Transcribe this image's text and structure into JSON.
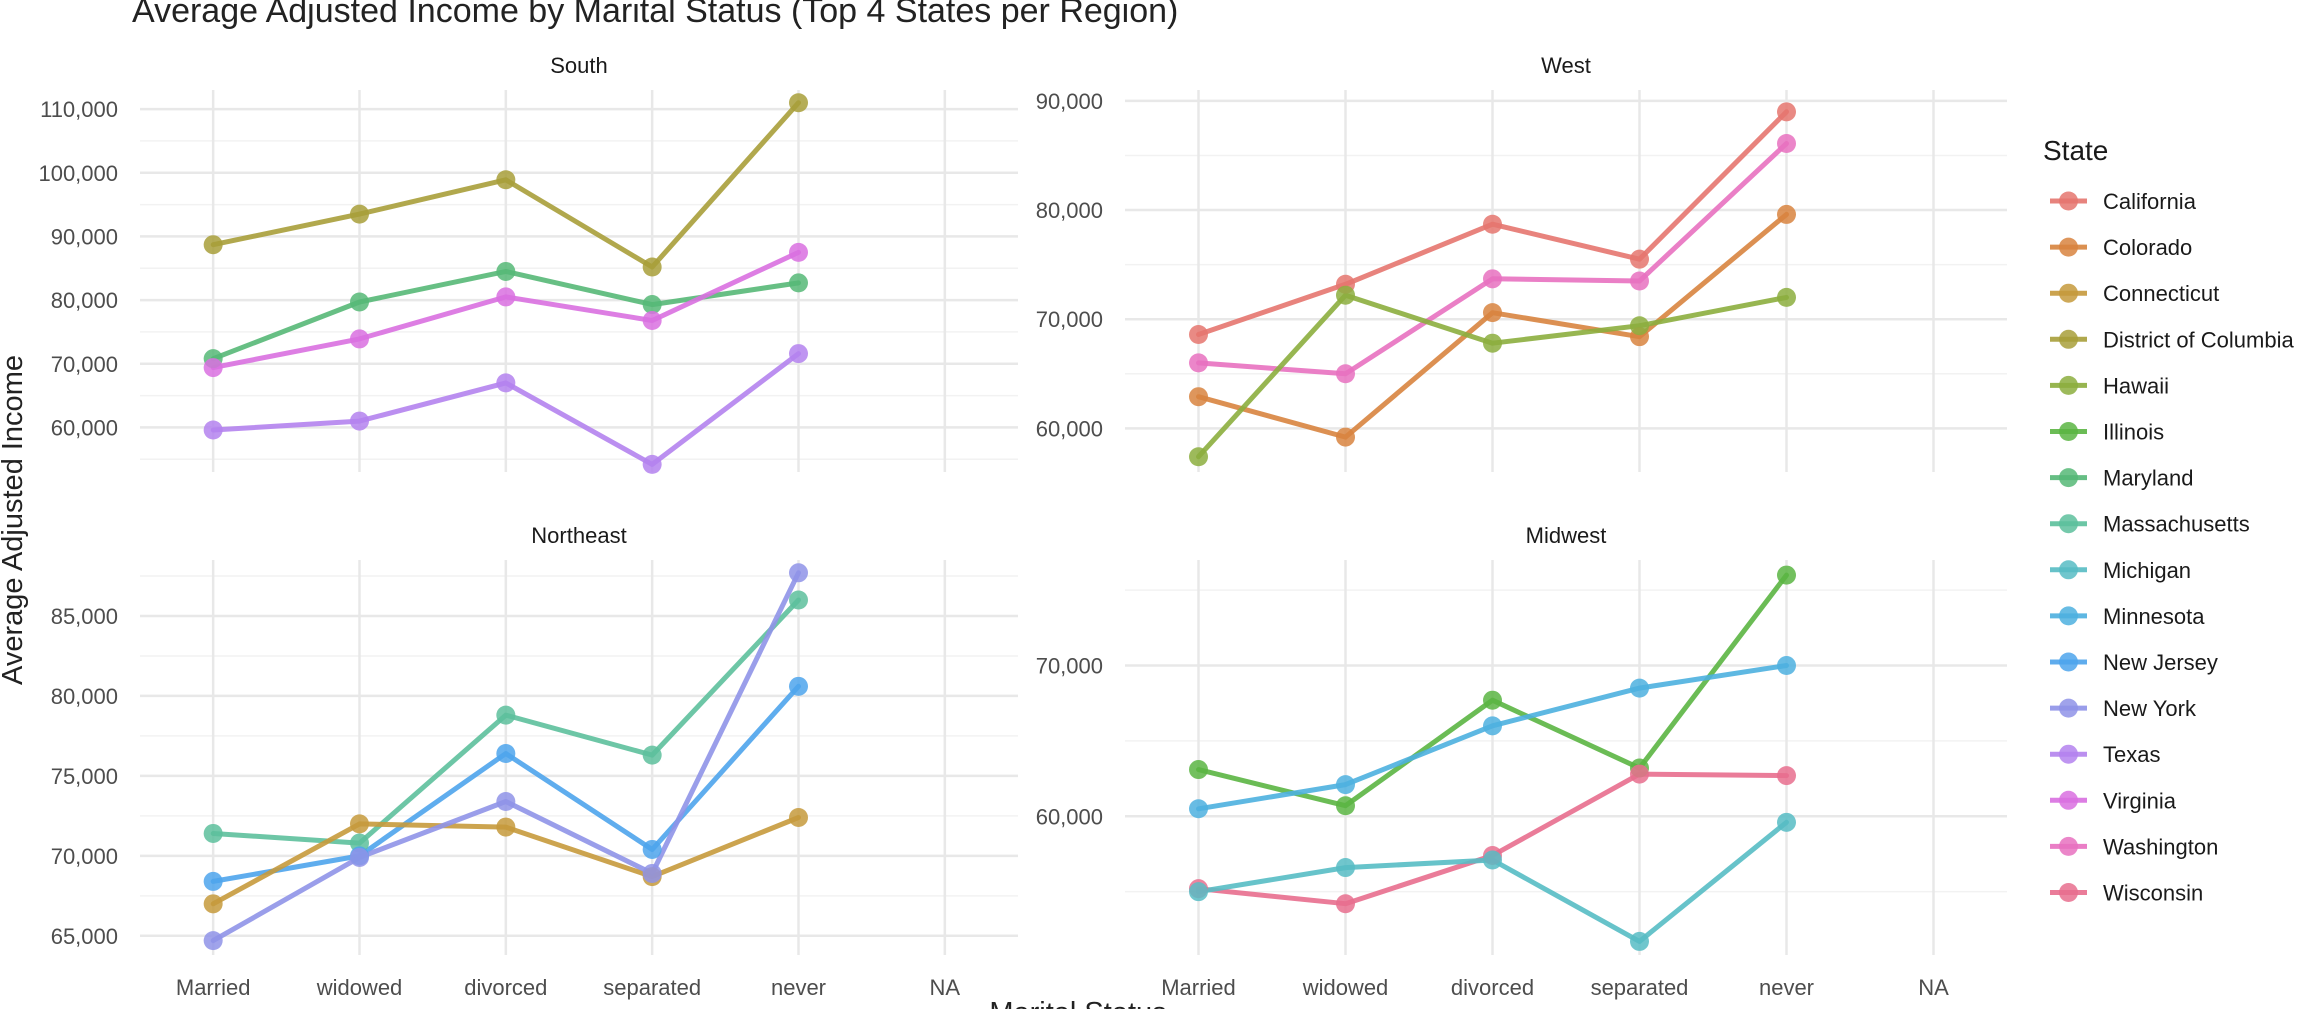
{
  "chart_data": {
    "type": "line",
    "title": "Average Adjusted Income by Marital Status (Top 4 States per Region)",
    "xlabel": "Marital Status",
    "ylabel": "Average Adjusted Income",
    "categories": [
      "Married",
      "widowed",
      "divorced",
      "separated",
      "never",
      "NA"
    ],
    "grid": true,
    "legend": {
      "title": "State",
      "position": "right",
      "entries": [
        {
          "name": "California",
          "color": "#E5766F"
        },
        {
          "name": "Colorado",
          "color": "#D8843F"
        },
        {
          "name": "Connecticut",
          "color": "#C69A3C"
        },
        {
          "name": "District of Columbia",
          "color": "#A89F3A"
        },
        {
          "name": "Hawaii",
          "color": "#8CAE3E"
        },
        {
          "name": "Illinois",
          "color": "#5BB543"
        },
        {
          "name": "Maryland",
          "color": "#56B877"
        },
        {
          "name": "Massachusetts",
          "color": "#5DC09C"
        },
        {
          "name": "Michigan",
          "color": "#57BCC4"
        },
        {
          "name": "Minnesota",
          "color": "#4DB0DF"
        },
        {
          "name": "New Jersey",
          "color": "#4EA4EC"
        },
        {
          "name": "New York",
          "color": "#8F93E8"
        },
        {
          "name": "Texas",
          "color": "#B483EE"
        },
        {
          "name": "Virginia",
          "color": "#D970E0"
        },
        {
          "name": "Washington",
          "color": "#E871C0"
        },
        {
          "name": "Wisconsin",
          "color": "#E86E8E"
        }
      ]
    },
    "panels": [
      {
        "region": "South",
        "ylim": [
          53000,
          113000
        ],
        "yticks": [
          60000,
          70000,
          80000,
          90000,
          100000,
          110000
        ],
        "ytick_labels": [
          "60,000",
          "70,000",
          "80,000",
          "90,000",
          "100,000",
          "110,000"
        ],
        "series": [
          {
            "name": "District of Columbia",
            "values": [
              88700,
              93500,
              98900,
              85200,
              111000
            ]
          },
          {
            "name": "Maryland",
            "values": [
              70800,
              79700,
              84500,
              79300,
              82700
            ]
          },
          {
            "name": "Virginia",
            "values": [
              69400,
              73900,
              80500,
              76800,
              87500
            ]
          },
          {
            "name": "Texas",
            "values": [
              59600,
              61000,
              67000,
              54200,
              71600
            ]
          }
        ]
      },
      {
        "region": "West",
        "ylim": [
          56000,
          91000
        ],
        "yticks": [
          60000,
          70000,
          80000,
          90000
        ],
        "ytick_labels": [
          "60,000",
          "70,000",
          "80,000",
          "90,000"
        ],
        "series": [
          {
            "name": "California",
            "values": [
              68600,
              73200,
              78700,
              75500,
              89000
            ]
          },
          {
            "name": "Washington",
            "values": [
              66000,
              65000,
              73700,
              73500,
              86100
            ]
          },
          {
            "name": "Colorado",
            "values": [
              62900,
              59200,
              70600,
              68400,
              79600
            ]
          },
          {
            "name": "Hawaii",
            "values": [
              57400,
              72200,
              67800,
              69400,
              72000
            ]
          }
        ]
      },
      {
        "region": "Northeast",
        "ylim": [
          63800,
          88500
        ],
        "yticks": [
          65000,
          70000,
          75000,
          80000,
          85000
        ],
        "ytick_labels": [
          "65,000",
          "70,000",
          "75,000",
          "80,000",
          "85,000"
        ],
        "series": [
          {
            "name": "Massachusetts",
            "values": [
              71400,
              70800,
              78800,
              76300,
              86000
            ]
          },
          {
            "name": "New Jersey",
            "values": [
              68400,
              70000,
              76400,
              70400,
              80600
            ]
          },
          {
            "name": "Connecticut",
            "values": [
              67000,
              72000,
              71800,
              68700,
              72400
            ]
          },
          {
            "name": "New York",
            "values": [
              64700,
              69900,
              73400,
              68900,
              87700
            ]
          }
        ]
      },
      {
        "region": "Midwest",
        "ylim": [
          50800,
          77000
        ],
        "yticks": [
          60000,
          70000
        ],
        "ytick_labels": [
          "60,000",
          "70,000"
        ],
        "series": [
          {
            "name": "Illinois",
            "values": [
              63100,
              60700,
              67700,
              63200,
              76000
            ]
          },
          {
            "name": "Minnesota",
            "values": [
              60500,
              62100,
              66000,
              68500,
              70000
            ]
          },
          {
            "name": "Wisconsin",
            "values": [
              55200,
              54200,
              57400,
              62800,
              62700
            ]
          },
          {
            "name": "Michigan",
            "values": [
              55000,
              56600,
              57100,
              51700,
              59600
            ]
          }
        ]
      }
    ]
  }
}
